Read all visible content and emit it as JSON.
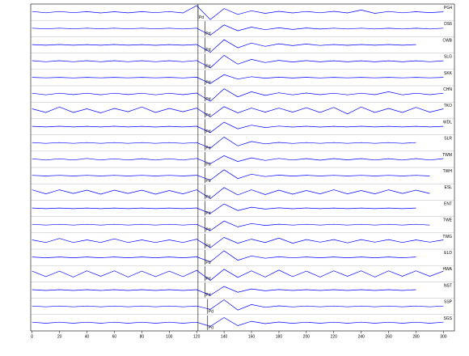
{
  "chart_data": {
    "type": "seismogram",
    "color": "#0000ff",
    "xlim": [
      -1,
      308
    ],
    "xticks": [
      0,
      20,
      40,
      60,
      80,
      100,
      120,
      140,
      160,
      180,
      200,
      220,
      240,
      260,
      280,
      300
    ],
    "x": [
      0,
      10,
      20,
      30,
      40,
      50,
      60,
      70,
      80,
      90,
      100,
      110,
      120,
      130,
      140,
      150,
      160,
      170,
      180,
      190,
      200,
      210,
      220,
      230,
      240,
      250,
      260,
      270,
      280,
      290,
      300
    ],
    "marker": 121,
    "phase": "Pd",
    "series": [
      {
        "name": "PG4",
        "pick": 121,
        "values": [
          0.1,
          0.08,
          0.1,
          0.07,
          0.08,
          0.1,
          0.07,
          0.09,
          0.08,
          0.07,
          0.09,
          0.1,
          0.9,
          1,
          0.5,
          0.3,
          0.2,
          0.15,
          0.12,
          0.1,
          0.1,
          0.08,
          0.12,
          0.1,
          0.3,
          0.15,
          0.1,
          0.08,
          0.07,
          0.06,
          0.06
        ]
      },
      {
        "name": "DS6",
        "pick": 126,
        "values": [
          0.05,
          0.04,
          0.05,
          0.04,
          0.05,
          0.04,
          0.05,
          0.04,
          0.05,
          0.04,
          0.05,
          0.05,
          0.06,
          0.9,
          0.5,
          0.3,
          0.2,
          0.15,
          0.1,
          0.12,
          0.08,
          0.07,
          0.06,
          0.05,
          0.05,
          0.05,
          0.04,
          0.05,
          0.04,
          0.05,
          0.05
        ]
      },
      {
        "name": "CWB",
        "pick": 126,
        "values": [
          0.04,
          0.04,
          0.05,
          0.04,
          0.04,
          0.04,
          0.05,
          0.04,
          0.04,
          0.05,
          0.04,
          0.04,
          0.05,
          1,
          0.7,
          0.4,
          0.25,
          0.2,
          0.15,
          0.1,
          0.12,
          0.08,
          0.06,
          0.05,
          0.05,
          0.04,
          0.05,
          0.04,
          0.04,
          null,
          null
        ]
      },
      {
        "name": "SLG",
        "pick": 126,
        "values": [
          0.08,
          0.07,
          0.08,
          0.07,
          0.08,
          0.07,
          0.08,
          0.07,
          0.08,
          0.07,
          0.08,
          0.07,
          0.1,
          0.9,
          0.8,
          0.4,
          0.25,
          0.18,
          0.12,
          0.1,
          0.09,
          0.08,
          0.07,
          0.08,
          0.07,
          0.08,
          0.07,
          0.08,
          0.07,
          0.07,
          0.07
        ]
      },
      {
        "name": "SKK",
        "pick": 126,
        "values": [
          0.03,
          0.03,
          0.03,
          0.04,
          0.03,
          0.03,
          0.03,
          0.03,
          0.03,
          0.03,
          0.03,
          0.04,
          0.05,
          0.8,
          0.4,
          0.2,
          0.12,
          0.08,
          0.06,
          0.05,
          0.04,
          0.04,
          0.03,
          0.03,
          0.03,
          0.03,
          0.03,
          0.03,
          0.03,
          0.03,
          0.03
        ]
      },
      {
        "name": "CHN",
        "pick": 126,
        "values": [
          0.1,
          0.12,
          0.1,
          0.09,
          0.1,
          0.11,
          0.1,
          0.09,
          0.1,
          0.12,
          0.1,
          0.1,
          0.12,
          1,
          0.7,
          0.4,
          0.3,
          0.2,
          0.15,
          0.12,
          0.12,
          0.1,
          0.1,
          0.12,
          0.1,
          0.1,
          0.3,
          0.12,
          0.1,
          0.1,
          0.1
        ]
      },
      {
        "name": "TKO",
        "pick": 126,
        "values": [
          0.2,
          0.3,
          0.45,
          0.3,
          0.2,
          0.35,
          0.25,
          0.2,
          0.45,
          0.3,
          0.25,
          0.2,
          0.3,
          0.9,
          0.5,
          0.35,
          0.3,
          0.25,
          0.3,
          0.25,
          0.35,
          0.3,
          0.4,
          0.5,
          0.45,
          0.3,
          0.25,
          0.3,
          0.4,
          0.25,
          0.2
        ]
      },
      {
        "name": "WDL",
        "pick": 126,
        "values": [
          0.04,
          0.04,
          0.05,
          0.04,
          0.04,
          0.04,
          0.05,
          0.04,
          0.04,
          0.05,
          0.04,
          0.04,
          0.05,
          0.8,
          0.6,
          0.3,
          0.2,
          0.12,
          0.08,
          0.06,
          0.05,
          0.05,
          0.04,
          0.04,
          0.05,
          0.04,
          0.04,
          0.04,
          0.04,
          0.04,
          0.04
        ]
      },
      {
        "name": "SLR",
        "pick": 126,
        "values": [
          0.05,
          0.05,
          0.05,
          0.05,
          0.05,
          0.05,
          0.05,
          0.05,
          0.05,
          0.05,
          0.05,
          0.05,
          0.06,
          0.7,
          0.8,
          0.4,
          0.2,
          0.12,
          0.08,
          0.07,
          0.06,
          0.05,
          0.05,
          0.05,
          0.05,
          0.05,
          0.05,
          0.05,
          0.05,
          null,
          null
        ]
      },
      {
        "name": "TWM",
        "pick": 126,
        "values": [
          0.08,
          0.1,
          0.08,
          0.1,
          0.12,
          0.1,
          0.08,
          0.1,
          0.09,
          0.1,
          0.08,
          0.1,
          0.12,
          0.6,
          0.5,
          0.3,
          0.2,
          0.15,
          0.12,
          0.1,
          0.1,
          0.12,
          0.1,
          0.08,
          0.1,
          0.1,
          0.09,
          0.1,
          0.1,
          0.1,
          0.1
        ]
      },
      {
        "name": "TWH",
        "pick": 126,
        "values": [
          0.04,
          0.04,
          0.04,
          0.04,
          0.04,
          0.04,
          0.04,
          0.04,
          0.04,
          0.04,
          0.04,
          0.04,
          0.05,
          0.6,
          0.8,
          0.4,
          0.2,
          0.12,
          0.08,
          0.06,
          0.05,
          0.04,
          0.04,
          0.04,
          0.04,
          0.04,
          0.04,
          0.04,
          0.04,
          0.04,
          null
        ]
      },
      {
        "name": "ESL",
        "pick": 126,
        "values": [
          0.3,
          0.25,
          0.3,
          0.2,
          0.25,
          0.3,
          0.25,
          0.2,
          0.25,
          0.3,
          0.2,
          0.25,
          0.3,
          0.9,
          0.6,
          0.4,
          0.3,
          0.35,
          0.25,
          0.3,
          0.2,
          0.25,
          0.3,
          0.25,
          0.2,
          0.25,
          0.3,
          0.2,
          0.25,
          0.2,
          null
        ]
      },
      {
        "name": "ENT",
        "pick": 126,
        "values": [
          0.04,
          0.04,
          0.04,
          0.04,
          0.04,
          0.04,
          0.04,
          0.04,
          0.04,
          0.04,
          0.04,
          0.04,
          0.05,
          0.7,
          0.6,
          0.3,
          0.15,
          0.1,
          0.07,
          0.05,
          0.05,
          0.04,
          0.04,
          0.04,
          0.04,
          0.04,
          0.04,
          0.04,
          0.04,
          null,
          null
        ]
      },
      {
        "name": "TWE",
        "pick": 126,
        "values": [
          0.05,
          0.05,
          0.05,
          0.05,
          0.05,
          0.05,
          0.05,
          0.05,
          0.05,
          0.05,
          0.05,
          0.05,
          0.06,
          0.8,
          0.5,
          0.3,
          0.15,
          0.1,
          0.07,
          0.06,
          0.05,
          0.05,
          0.05,
          0.05,
          0.05,
          0.05,
          0.05,
          0.05,
          0.05,
          0.05,
          null
        ]
      },
      {
        "name": "TWG",
        "pick": 126,
        "values": [
          0.15,
          0.2,
          0.35,
          0.2,
          0.15,
          0.2,
          0.3,
          0.2,
          0.15,
          0.2,
          0.15,
          0.2,
          0.25,
          0.9,
          0.5,
          0.3,
          0.25,
          0.2,
          0.4,
          0.3,
          0.2,
          0.15,
          0.2,
          0.25,
          0.2,
          0.15,
          0.2,
          0.2,
          0.15,
          0.15,
          0.15
        ]
      },
      {
        "name": "ELD",
        "pick": 126,
        "values": [
          0.06,
          0.06,
          0.06,
          0.06,
          0.06,
          0.06,
          0.06,
          0.06,
          0.06,
          0.06,
          0.06,
          0.06,
          0.07,
          0.6,
          0.9,
          0.4,
          0.2,
          0.12,
          0.08,
          0.07,
          0.06,
          0.06,
          0.06,
          0.06,
          0.06,
          0.06,
          0.06,
          0.06,
          0.06,
          null,
          null
        ]
      },
      {
        "name": "HWA",
        "pick": 126,
        "values": [
          0.35,
          0.4,
          0.35,
          0.45,
          0.4,
          0.35,
          0.4,
          0.45,
          0.35,
          0.4,
          0.35,
          0.4,
          0.45,
          0.9,
          0.6,
          0.5,
          0.4,
          0.45,
          0.5,
          0.4,
          0.35,
          0.45,
          0.4,
          0.35,
          0.4,
          0.45,
          0.4,
          0.35,
          0.4,
          0.35,
          0.35
        ]
      },
      {
        "name": "NST",
        "pick": 126,
        "values": [
          0.05,
          0.05,
          0.05,
          0.05,
          0.05,
          0.05,
          0.05,
          0.05,
          0.05,
          0.05,
          0.05,
          0.05,
          0.06,
          0.7,
          0.5,
          0.3,
          0.15,
          0.1,
          0.07,
          0.06,
          0.05,
          0.05,
          0.05,
          0.05,
          0.05,
          0.05,
          0.05,
          0.05,
          0.05,
          null,
          null
        ]
      },
      {
        "name": "SSP",
        "pick": 128,
        "values": [
          0.06,
          0.06,
          0.06,
          0.06,
          0.06,
          0.06,
          0.06,
          0.06,
          0.06,
          0.06,
          0.06,
          0.06,
          0.06,
          0.4,
          0.9,
          0.5,
          0.25,
          0.12,
          0.08,
          0.07,
          0.06,
          0.06,
          0.06,
          0.06,
          0.06,
          0.06,
          0.06,
          0.06,
          0.06,
          0.06,
          0.06
        ]
      },
      {
        "name": "SGS",
        "pick": 128,
        "values": [
          0.08,
          0.07,
          0.08,
          0.07,
          0.08,
          0.07,
          0.08,
          0.07,
          0.08,
          0.07,
          0.08,
          0.07,
          0.08,
          0.5,
          0.7,
          0.4,
          0.2,
          0.12,
          0.1,
          0.08,
          0.08,
          0.07,
          0.08,
          0.07,
          0.08,
          0.07,
          0.08,
          0.07,
          0.08,
          0.07,
          0.08
        ]
      }
    ]
  }
}
